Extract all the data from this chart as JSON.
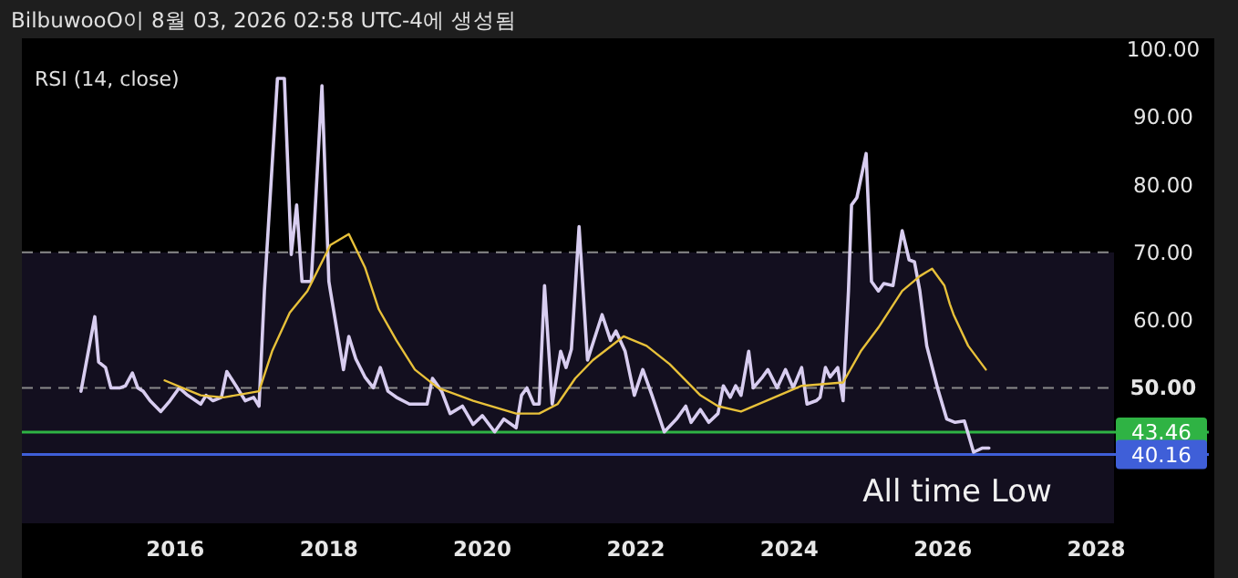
{
  "chart_data": {
    "type": "line",
    "title": "BilbuwooO이 8월 03, 2026 02:58 UTC-4에 생성됨",
    "subtitle": "RSI (14, close)",
    "annotations": [
      "All time Low"
    ],
    "xlim": [
      2014.0,
      2028.23
    ],
    "xticks": [
      2016,
      2018,
      2020,
      2022,
      2024,
      2026,
      2028
    ],
    "ylim": [
      30,
      100
    ],
    "yticks": [
      {
        "value": 50,
        "label": "50.00"
      },
      {
        "value": 60,
        "label": "60.00"
      },
      {
        "value": 70,
        "label": "70.00"
      },
      {
        "value": 80,
        "label": "80.00"
      },
      {
        "value": 90,
        "label": "90.00"
      },
      {
        "value": 100,
        "label": "100.00"
      }
    ],
    "bands": [
      {
        "axis": "y",
        "from": 30,
        "to": 70,
        "color": "#130f1f"
      }
    ],
    "ref_lines": [
      {
        "axis": "y",
        "value": 70,
        "color": "#8a8a8a",
        "line_style": "dashed"
      },
      {
        "axis": "y",
        "value": 50,
        "color": "#8a8a8a",
        "line_style": "dashed"
      },
      {
        "axis": "y",
        "value": 43.46,
        "label": "43.46",
        "color": "#2fb344",
        "line_style": "solid"
      },
      {
        "axis": "y",
        "value": 40.16,
        "label": "40.16",
        "color": "#3f5fd8",
        "line_style": "solid"
      }
    ],
    "series": [
      {
        "color": "#d8cdf0",
        "x": [
          2014.77,
          2014.95,
          2015.0,
          2015.09,
          2015.16,
          2015.28,
          2015.35,
          2015.44,
          2015.51,
          2015.58,
          2015.67,
          2015.81,
          2015.93,
          2016.05,
          2016.16,
          2016.33,
          2016.4,
          2016.49,
          2016.6,
          2016.67,
          2016.79,
          2016.91,
          2017.02,
          2017.09,
          2017.16,
          2017.33,
          2017.42,
          2017.51,
          2017.58,
          2017.65,
          2017.77,
          2017.91,
          2018.0,
          2018.02,
          2018.19,
          2018.26,
          2018.35,
          2018.47,
          2018.58,
          2018.67,
          2018.77,
          2018.88,
          2019.05,
          2019.28,
          2019.35,
          2019.47,
          2019.58,
          2019.74,
          2019.88,
          2020.0,
          2020.16,
          2020.28,
          2020.44,
          2020.51,
          2020.58,
          2020.67,
          2020.74,
          2020.81,
          2020.91,
          2021.02,
          2021.09,
          2021.16,
          2021.26,
          2021.37,
          2021.56,
          2021.67,
          2021.74,
          2021.86,
          2021.98,
          2022.09,
          2022.21,
          2022.37,
          2022.53,
          2022.65,
          2022.72,
          2022.84,
          2022.95,
          2023.07,
          2023.14,
          2023.23,
          2023.3,
          2023.37,
          2023.47,
          2023.53,
          2023.65,
          2023.72,
          2023.84,
          2023.95,
          2024.05,
          2024.16,
          2024.23,
          2024.35,
          2024.4,
          2024.47,
          2024.53,
          2024.63,
          2024.7,
          2024.77,
          2024.81,
          2024.88,
          2025.0,
          2025.07,
          2025.16,
          2025.23,
          2025.35,
          2025.47,
          2025.56,
          2025.63,
          2025.7,
          2025.79,
          2025.93,
          2026.05,
          2026.16,
          2026.28,
          2026.4,
          2026.51,
          2026.6
        ],
        "values": [
          49.5,
          60.5,
          53.8,
          53.0,
          50,
          50,
          50.3,
          52.2,
          50,
          49.5,
          48.1,
          46.5,
          48.1,
          50,
          48.9,
          47.6,
          48.9,
          48.1,
          48.6,
          52.4,
          50.3,
          48.1,
          48.6,
          47.3,
          64.3,
          95.7,
          95.7,
          69.7,
          77.0,
          65.7,
          65.7,
          94.6,
          65.7,
          64.3,
          52.7,
          57.6,
          54.3,
          51.6,
          50,
          53.0,
          49.5,
          48.6,
          47.6,
          47.6,
          51.4,
          49.5,
          46.2,
          47.3,
          44.6,
          45.9,
          43.5,
          45.4,
          44.1,
          48.9,
          50,
          47.6,
          47.6,
          65.1,
          47.6,
          55.4,
          53.0,
          55.7,
          73.8,
          54.1,
          60.8,
          57.0,
          58.4,
          55.4,
          48.9,
          52.7,
          48.9,
          43.5,
          45.4,
          47.3,
          44.9,
          46.8,
          44.9,
          46.2,
          50.3,
          48.6,
          50.3,
          48.9,
          55.4,
          50,
          51.6,
          52.7,
          50,
          52.7,
          50,
          53.0,
          47.6,
          48.1,
          48.6,
          53.0,
          51.6,
          53.0,
          48.1,
          64.3,
          77.0,
          78.1,
          84.6,
          65.7,
          64.3,
          65.4,
          65.1,
          73.2,
          68.9,
          68.6,
          64.3,
          56.2,
          50,
          45.4,
          44.9,
          45.1,
          40.5,
          41.1,
          41.1
        ]
      },
      {
        "color": "#e8c13a",
        "x": [
          2015.86,
          2016.09,
          2016.33,
          2016.63,
          2017.09,
          2017.26,
          2017.49,
          2017.72,
          2018.02,
          2018.26,
          2018.47,
          2018.65,
          2018.88,
          2019.12,
          2019.42,
          2019.88,
          2020.44,
          2020.74,
          2020.98,
          2021.21,
          2021.44,
          2021.84,
          2022.14,
          2022.44,
          2022.84,
          2023.07,
          2023.37,
          2023.7,
          2024.16,
          2024.7,
          2024.93,
          2025.16,
          2025.47,
          2025.7,
          2025.86,
          2026.02,
          2026.09,
          2026.14,
          2026.33,
          2026.56
        ],
        "values": [
          51.1,
          50,
          48.9,
          48.6,
          49.5,
          55.4,
          61.1,
          64.3,
          71.1,
          72.7,
          67.8,
          61.6,
          57.0,
          52.7,
          50,
          48.1,
          46.2,
          46.2,
          47.6,
          51.4,
          54.1,
          57.6,
          56.2,
          53.5,
          48.9,
          47.3,
          46.5,
          48.1,
          50.3,
          50.8,
          55.4,
          58.9,
          64.3,
          66.5,
          67.6,
          65.1,
          62.4,
          60.8,
          56.2,
          52.7
        ]
      }
    ]
  }
}
